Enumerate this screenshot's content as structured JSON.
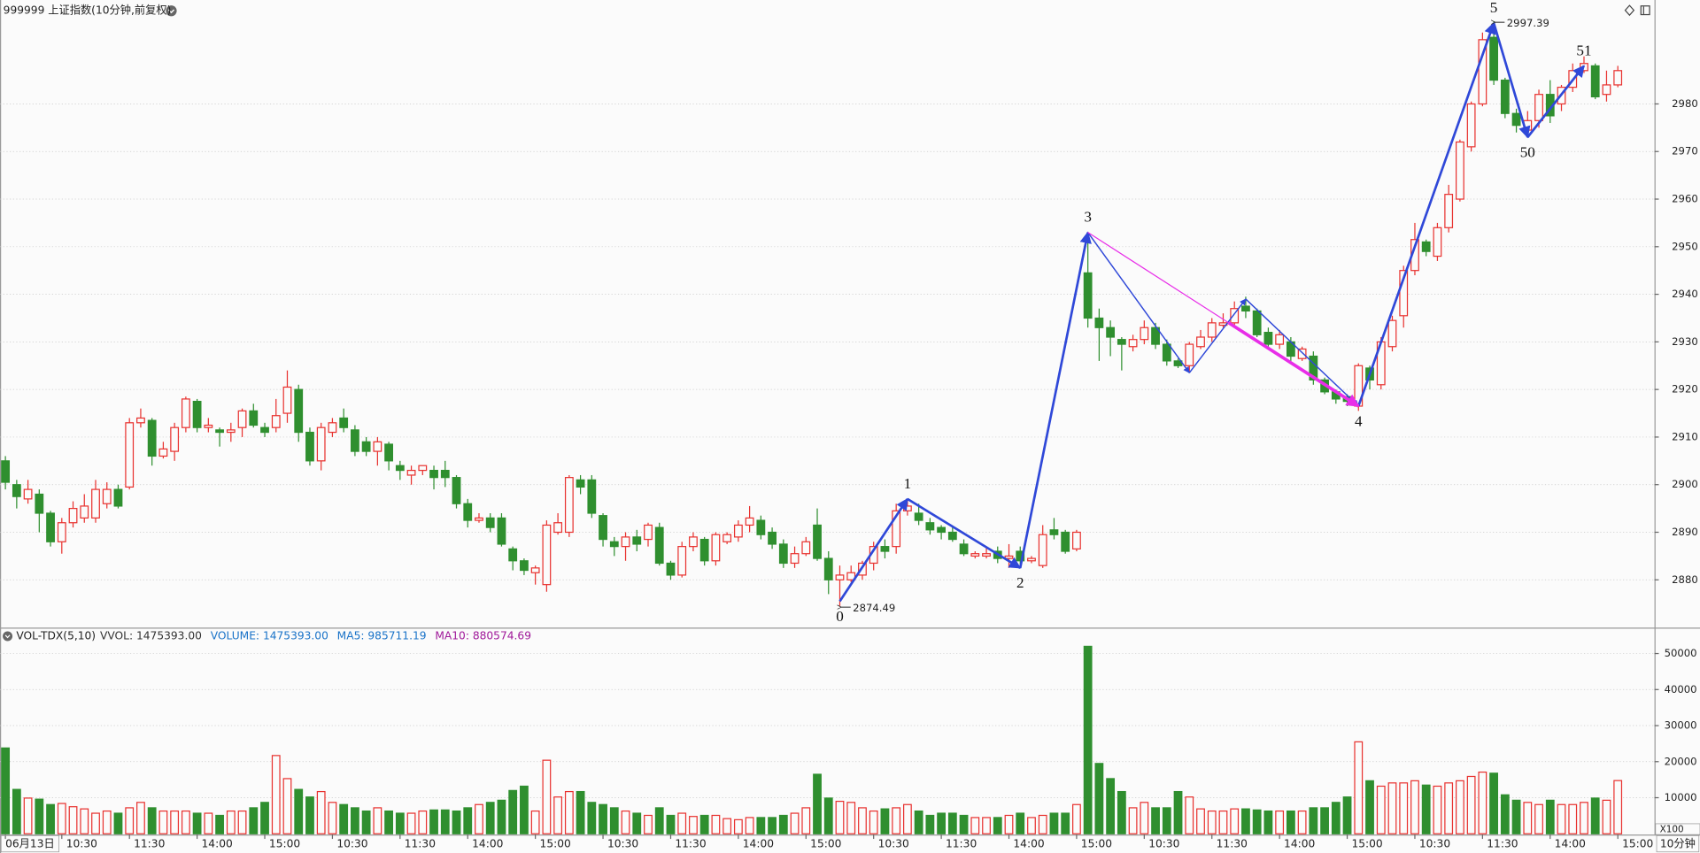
{
  "chart_data": {
    "type": "candlestick",
    "title": "999999 上证指数(10分钟,前复权)",
    "up_color": "#e8322f",
    "down_color": "#2f8f2f",
    "ylim": [
      2870.2,
      3000.7
    ],
    "yticks": [
      2880,
      2890,
      2900,
      2910,
      2920,
      2930,
      2940,
      2950,
      2960,
      2970,
      2980
    ],
    "grid": true,
    "candles": [
      [
        2905,
        2906,
        2899,
        2900.5
      ],
      [
        2900,
        2901,
        2895,
        2897.5
      ],
      [
        2897,
        2901,
        2896,
        2899
      ],
      [
        2898,
        2899,
        2890,
        2894
      ],
      [
        2894,
        2894.5,
        2887,
        2888
      ],
      [
        2888,
        2893,
        2885.5,
        2892
      ],
      [
        2892,
        2896.5,
        2891,
        2895
      ],
      [
        2893,
        2898,
        2892,
        2895.5
      ],
      [
        2893,
        2901,
        2892,
        2899
      ],
      [
        2896,
        2900.5,
        2895,
        2899
      ],
      [
        2899,
        2900,
        2895,
        2895.5
      ],
      [
        2899.5,
        2914,
        2899,
        2913
      ],
      [
        2913,
        2916,
        2912,
        2914
      ],
      [
        2913.5,
        2914,
        2904,
        2906
      ],
      [
        2906,
        2909,
        2905.5,
        2907.5
      ],
      [
        2907,
        2913,
        2905,
        2912
      ],
      [
        2912,
        2918.5,
        2911,
        2918
      ],
      [
        2917.5,
        2918,
        2911,
        2912
      ],
      [
        2912,
        2914,
        2911,
        2912.5
      ],
      [
        2911.5,
        2912,
        2908,
        2911
      ],
      [
        2911,
        2913,
        2909,
        2911.5
      ],
      [
        2912,
        2916,
        2910,
        2915.5
      ],
      [
        2915.5,
        2917,
        2912,
        2912.5
      ],
      [
        2912,
        2913,
        2910,
        2911
      ],
      [
        2912,
        2918,
        2911,
        2914.5
      ],
      [
        2915,
        2924,
        2913,
        2920.5
      ],
      [
        2920,
        2921,
        2909,
        2911
      ],
      [
        2911,
        2912,
        2904,
        2905
      ],
      [
        2905,
        2913,
        2903,
        2912
      ],
      [
        2911,
        2914,
        2910,
        2913
      ],
      [
        2914,
        2916,
        2911,
        2912
      ],
      [
        2911.5,
        2912.5,
        2906,
        2907
      ],
      [
        2909,
        2910,
        2906,
        2907
      ],
      [
        2907,
        2910,
        2904,
        2909
      ],
      [
        2908.5,
        2909,
        2903,
        2905
      ],
      [
        2904,
        2905,
        2901,
        2903
      ],
      [
        2902,
        2904,
        2900,
        2903
      ],
      [
        2903,
        2904,
        2902,
        2904
      ],
      [
        2903,
        2904,
        2899,
        2901.5
      ],
      [
        2903,
        2905,
        2899.5,
        2901.5
      ],
      [
        2901.5,
        2902,
        2895,
        2896
      ],
      [
        2896,
        2897,
        2891,
        2892.5
      ],
      [
        2892.5,
        2894,
        2892,
        2893
      ],
      [
        2893,
        2894,
        2890,
        2891
      ],
      [
        2893,
        2894,
        2887,
        2887.5
      ],
      [
        2886.5,
        2887,
        2882,
        2884
      ],
      [
        2884,
        2884.5,
        2881,
        2882
      ],
      [
        2881.5,
        2883,
        2879,
        2882.5
      ],
      [
        2879,
        2892.5,
        2877.5,
        2891.5
      ],
      [
        2890,
        2894,
        2889.5,
        2892
      ],
      [
        2890,
        2902,
        2889,
        2901.5
      ],
      [
        2901,
        2902,
        2898,
        2899.5
      ],
      [
        2901,
        2902,
        2893,
        2894
      ],
      [
        2893.5,
        2894,
        2887,
        2888.5
      ],
      [
        2888,
        2889,
        2885,
        2887
      ],
      [
        2887,
        2890,
        2884,
        2889
      ],
      [
        2889,
        2890.5,
        2886,
        2887.5
      ],
      [
        2888.5,
        2892,
        2887,
        2891.5
      ],
      [
        2891,
        2892,
        2883,
        2883.5
      ],
      [
        2883.5,
        2884,
        2880,
        2881
      ],
      [
        2881,
        2888,
        2880.5,
        2887
      ],
      [
        2887,
        2890,
        2886,
        2889
      ],
      [
        2888.5,
        2889,
        2883,
        2884
      ],
      [
        2884,
        2890,
        2883,
        2889.5
      ],
      [
        2888,
        2890,
        2887.5,
        2889.5
      ],
      [
        2889,
        2892.5,
        2888,
        2891.5
      ],
      [
        2891.5,
        2895.5,
        2890,
        2893
      ],
      [
        2892.5,
        2893.5,
        2888.5,
        2889.5
      ],
      [
        2890,
        2891,
        2886.5,
        2887.5
      ],
      [
        2887.5,
        2888.5,
        2882.5,
        2883.5
      ],
      [
        2883.5,
        2887,
        2882.5,
        2885.5
      ],
      [
        2885.5,
        2889,
        2885,
        2888
      ],
      [
        2891.5,
        2895,
        2884,
        2884.5
      ],
      [
        2884.5,
        2886,
        2877,
        2880
      ],
      [
        2880,
        2883,
        2874.49,
        2881
      ],
      [
        2880,
        2883,
        2879.5,
        2881.5
      ],
      [
        2881,
        2884,
        2880,
        2883.5
      ],
      [
        2883.5,
        2888,
        2882,
        2887
      ],
      [
        2887,
        2888.5,
        2884.5,
        2886
      ],
      [
        2887,
        2896,
        2885.5,
        2894.5
      ],
      [
        2894.5,
        2897,
        2893.5,
        2895.5
      ],
      [
        2894,
        2896,
        2891.5,
        2892.5
      ],
      [
        2892,
        2893,
        2889.5,
        2890.5
      ],
      [
        2891,
        2891.5,
        2888.5,
        2890
      ],
      [
        2890,
        2891,
        2888,
        2888.5
      ],
      [
        2887.5,
        2888.5,
        2885,
        2885.5
      ],
      [
        2885,
        2886,
        2884.5,
        2885.5
      ],
      [
        2885,
        2887,
        2884.5,
        2885.5
      ],
      [
        2886,
        2887,
        2883.5,
        2884.5
      ],
      [
        2884.5,
        2887.5,
        2882.5,
        2885
      ],
      [
        2886,
        2887,
        2882.5,
        2884
      ],
      [
        2884,
        2885,
        2883.5,
        2884.5
      ],
      [
        2883,
        2891.5,
        2882.5,
        2889.5
      ],
      [
        2890.5,
        2893,
        2888.5,
        2889.5
      ],
      [
        2890,
        2890.5,
        2885.5,
        2886
      ],
      [
        2886.5,
        2890.5,
        2886,
        2890
      ],
      [
        2944.5,
        2953,
        2933,
        2935
      ],
      [
        2935,
        2937,
        2926,
        2933
      ],
      [
        2933,
        2934.5,
        2927,
        2931
      ],
      [
        2930.5,
        2931,
        2924,
        2929.5
      ],
      [
        2929,
        2931.5,
        2928,
        2930.5
      ],
      [
        2930.5,
        2934.5,
        2929.5,
        2933
      ],
      [
        2933,
        2934,
        2928.5,
        2929.5
      ],
      [
        2929.5,
        2930.5,
        2925,
        2926
      ],
      [
        2926,
        2926.5,
        2924.5,
        2925
      ],
      [
        2925,
        2930,
        2923.5,
        2929.5
      ],
      [
        2929,
        2932.5,
        2928.5,
        2931
      ],
      [
        2931,
        2935,
        2930,
        2934
      ],
      [
        2933.5,
        2936,
        2933,
        2934
      ],
      [
        2934,
        2938.5,
        2933.5,
        2937
      ],
      [
        2937.5,
        2939.5,
        2935,
        2936.5
      ],
      [
        2936.5,
        2937,
        2931,
        2931.5
      ],
      [
        2932,
        2933,
        2929,
        2929.5
      ],
      [
        2929.5,
        2932.5,
        2928.5,
        2931.5
      ],
      [
        2930,
        2931,
        2926,
        2927
      ],
      [
        2926.5,
        2929,
        2926,
        2928.5
      ],
      [
        2927,
        2928,
        2921,
        2922
      ],
      [
        2922,
        2922.5,
        2919,
        2919.5
      ],
      [
        2919.5,
        2920,
        2917,
        2918
      ],
      [
        2918.5,
        2919,
        2916.5,
        2917.5
      ],
      [
        2916.5,
        2925.5,
        2915.5,
        2925
      ],
      [
        2924.5,
        2925,
        2920,
        2922
      ],
      [
        2921,
        2931,
        2920,
        2930
      ],
      [
        2929,
        2935.5,
        2928,
        2934.5
      ],
      [
        2935.5,
        2946,
        2933,
        2945
      ],
      [
        2945,
        2955,
        2944,
        2951.5
      ],
      [
        2951,
        2951.5,
        2948,
        2949
      ],
      [
        2948,
        2955,
        2947,
        2954
      ],
      [
        2954,
        2963,
        2953,
        2961
      ],
      [
        2960,
        2972.5,
        2959.5,
        2972
      ],
      [
        2971,
        2980.5,
        2970,
        2980
      ],
      [
        2980,
        2995,
        2979.5,
        2993.5
      ],
      [
        2994,
        2997.39,
        2984,
        2985
      ],
      [
        2985,
        2985.5,
        2977,
        2978
      ],
      [
        2978,
        2979,
        2974,
        2975.5
      ],
      [
        2974.5,
        2978.5,
        2973,
        2976.5
      ],
      [
        2976.5,
        2983,
        2975,
        2982
      ],
      [
        2982,
        2985,
        2976,
        2977.5
      ],
      [
        2980,
        2984,
        2978.5,
        2983.5
      ],
      [
        2983.5,
        2988.5,
        2982.5,
        2987
      ],
      [
        2987,
        2990,
        2986.5,
        2988.5
      ],
      [
        2988,
        2988.5,
        2981,
        2981.5
      ],
      [
        2982,
        2987,
        2980.5,
        2984
      ],
      [
        2984,
        2988,
        2983.5,
        2987
      ]
    ],
    "annotations": [
      {
        "bar": 74,
        "price": 2874.49
      },
      {
        "bar": 132,
        "price": 2997.39
      }
    ],
    "zigzag_color": "#2f48d8",
    "link_color": "#e82ee8",
    "zigzag": [
      {
        "label": "0",
        "bar": 74,
        "price": 2875.5
      },
      {
        "label": "1",
        "bar": 80,
        "price": 2897
      },
      {
        "label": "2",
        "bar": 90,
        "price": 2882.5
      },
      {
        "label": "3",
        "bar": 96,
        "price": 2953
      },
      {
        "label": null,
        "bar": 105,
        "price": 2923.5
      },
      {
        "label": null,
        "bar": 110,
        "price": 2939
      },
      {
        "label": "4",
        "bar": 120,
        "price": 2916.5
      },
      {
        "label": "5",
        "bar": 132,
        "price": 2997
      },
      {
        "label": "50",
        "bar": 135,
        "price": 2973
      },
      {
        "label": "51",
        "bar": 140,
        "price": 2988
      }
    ],
    "xlabels": [
      {
        "bar": 0,
        "label": "06月13日"
      },
      {
        "bar": 5,
        "label": "10:30"
      },
      {
        "bar": 11,
        "label": "11:30"
      },
      {
        "bar": 17,
        "label": "14:00"
      },
      {
        "bar": 23,
        "label": "15:00"
      },
      {
        "bar": 29,
        "label": "10:30"
      },
      {
        "bar": 35,
        "label": "11:30"
      },
      {
        "bar": 41,
        "label": "14:00"
      },
      {
        "bar": 47,
        "label": "15:00"
      },
      {
        "bar": 53,
        "label": "10:30"
      },
      {
        "bar": 59,
        "label": "11:30"
      },
      {
        "bar": 65,
        "label": "14:00"
      },
      {
        "bar": 71,
        "label": "15:00"
      },
      {
        "bar": 77,
        "label": "10:30"
      },
      {
        "bar": 83,
        "label": "11:30"
      },
      {
        "bar": 89,
        "label": "14:00"
      },
      {
        "bar": 95,
        "label": "15:00"
      },
      {
        "bar": 101,
        "label": "10:30"
      },
      {
        "bar": 107,
        "label": "11:30"
      },
      {
        "bar": 113,
        "label": "14:00"
      },
      {
        "bar": 119,
        "label": "15:00"
      },
      {
        "bar": 125,
        "label": "10:30"
      },
      {
        "bar": 131,
        "label": "11:30"
      },
      {
        "bar": 137,
        "label": "14:00"
      },
      {
        "bar": 143,
        "label": "15:00"
      }
    ],
    "period": "10分钟",
    "volume": {
      "indicator": "VOL-TDX(5,10)",
      "readouts": [
        {
          "text": "VVOL: 1475393.00",
          "color": "#333333"
        },
        {
          "text": "VOLUME: 1475393.00",
          "color": "#1a73c8"
        },
        {
          "text": "MA5: 985711.19",
          "color": "#1a73c8"
        },
        {
          "text": "MA10: 880574.69",
          "color": "#a0199a"
        }
      ],
      "unit": "X100",
      "ylim": [
        0,
        56900
      ],
      "yticks": [
        10000,
        20000,
        30000,
        40000,
        50000
      ],
      "values": [
        23800,
        12300,
        9900,
        9600,
        8100,
        8400,
        7500,
        6900,
        5700,
        6300,
        5700,
        7200,
        8700,
        7200,
        6300,
        6300,
        6300,
        5700,
        5700,
        5100,
        6300,
        6300,
        7200,
        8700,
        21700,
        15300,
        12300,
        10200,
        11700,
        8700,
        8100,
        7200,
        6300,
        7200,
        6300,
        5700,
        5700,
        6300,
        6600,
        6600,
        6300,
        7200,
        8100,
        8700,
        9300,
        12000,
        13200,
        6300,
        20400,
        10200,
        11700,
        11700,
        8700,
        8100,
        7200,
        6300,
        5700,
        5100,
        7200,
        5100,
        5700,
        4800,
        5100,
        5100,
        4200,
        3900,
        4500,
        4500,
        4500,
        5100,
        5700,
        7200,
        16500,
        9900,
        9000,
        8700,
        7200,
        6300,
        6900,
        7200,
        8100,
        6300,
        5100,
        5700,
        5700,
        5100,
        4500,
        4500,
        4500,
        5100,
        5700,
        4500,
        5100,
        5700,
        5700,
        8100,
        52000,
        19500,
        15300,
        11700,
        7200,
        8700,
        7200,
        7200,
        11700,
        10200,
        6900,
        6300,
        6300,
        6900,
        6900,
        6600,
        6300,
        6300,
        6300,
        6300,
        7200,
        7200,
        8700,
        10200,
        25500,
        14700,
        13200,
        14100,
        14100,
        14700,
        13500,
        13200,
        14100,
        14700,
        15900,
        17100,
        16800,
        10800,
        9300,
        8700,
        8100,
        9300,
        8100,
        8100,
        8700,
        9900,
        9300,
        14753.93
      ]
    }
  }
}
